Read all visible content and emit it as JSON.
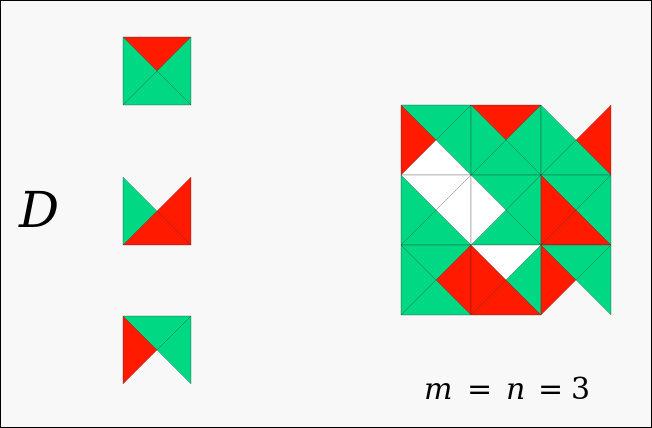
{
  "label_d": "D",
  "equation": {
    "m": "m",
    "eq1": "=",
    "n": "n",
    "eq2": "=",
    "value": "3"
  },
  "colors": {
    "green": "#00d884",
    "red": "#ff1a00",
    "white": "#ffffff",
    "edge": "#222222",
    "background": "#f8f8f8"
  },
  "tiles": [
    {
      "name": "tile-1",
      "quadrants": {
        "top": "red",
        "right": "green",
        "bottom": "green",
        "left": "green"
      }
    },
    {
      "name": "tile-2",
      "quadrants": {
        "top": "blank",
        "right": "red",
        "bottom": "red",
        "left": "green"
      }
    },
    {
      "name": "tile-3",
      "quadrants": {
        "top": "green",
        "right": "green",
        "bottom": "blank",
        "left": "red"
      }
    }
  ],
  "tiling": {
    "m": 3,
    "n": 3
  }
}
